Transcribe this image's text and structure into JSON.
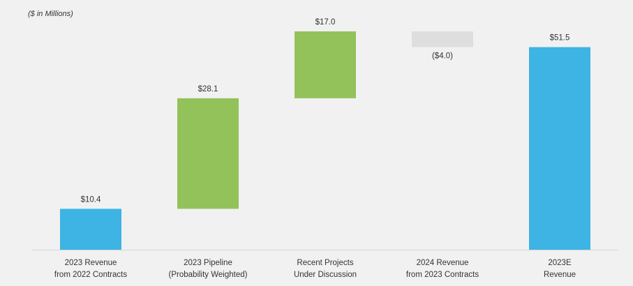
{
  "chart_data": {
    "type": "waterfall",
    "subtitle": "($ in Millions)",
    "categories": [
      "2023 Revenue\nfrom 2022 Contracts",
      "2023 Pipeline\n(Probability Weighted)",
      "Recent Projects\nUnder Discussion",
      "2024 Revenue\nfrom 2023 Contracts",
      "2023E\nRevenue"
    ],
    "values": [
      10.4,
      28.1,
      17,
      -4,
      51.5
    ],
    "value_labels": [
      "$10.4",
      "$28.1",
      "$17.0",
      "($4.0)",
      "$51.5"
    ],
    "is_total": [
      false,
      false,
      false,
      false,
      true
    ],
    "colors": [
      "#3db4e3",
      "#93c25a",
      "#93c25a",
      "#dedede",
      "#3db4e3"
    ]
  }
}
